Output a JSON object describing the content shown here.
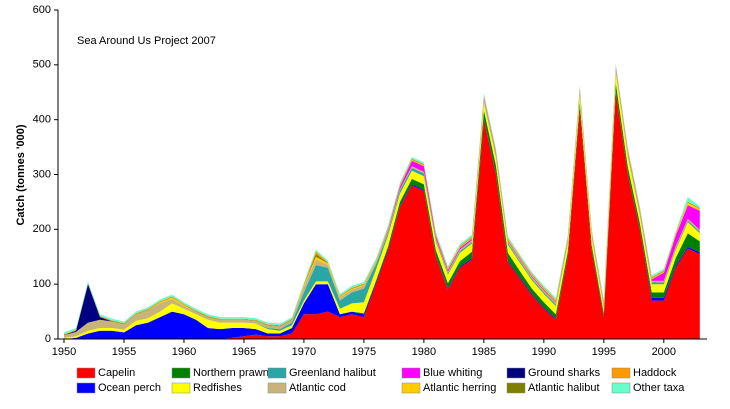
{
  "chart_data": {
    "type": "stacked-area",
    "annotation": "Sea Around Us Project 2007",
    "y_label": "Catch (tonnes '000)",
    "x": [
      1950,
      1951,
      1952,
      1953,
      1954,
      1955,
      1956,
      1957,
      1958,
      1959,
      1960,
      1961,
      1962,
      1963,
      1964,
      1965,
      1966,
      1967,
      1968,
      1969,
      1970,
      1971,
      1972,
      1973,
      1974,
      1975,
      1976,
      1977,
      1978,
      1979,
      1980,
      1981,
      1982,
      1983,
      1984,
      1985,
      1986,
      1987,
      1988,
      1989,
      1990,
      1991,
      1992,
      1993,
      1994,
      1995,
      1996,
      1997,
      1998,
      1999,
      2000,
      2001,
      2002,
      2003
    ],
    "xlim": [
      1949.5,
      2003.6
    ],
    "xticks": [
      1950,
      1955,
      1960,
      1965,
      1970,
      1975,
      1980,
      1985,
      1990,
      1995,
      2000
    ],
    "ylim": [
      0,
      600
    ],
    "yticks": [
      0,
      100,
      200,
      300,
      400,
      500,
      600
    ],
    "series": [
      {
        "name": "Capelin",
        "color": "#ff0000",
        "values": [
          0,
          0,
          0,
          0,
          0,
          0,
          0,
          0,
          0,
          0,
          0,
          0,
          0,
          0,
          2,
          5,
          8,
          5,
          5,
          10,
          45,
          45,
          50,
          40,
          45,
          40,
          100,
          160,
          240,
          280,
          270,
          150,
          90,
          130,
          145,
          400,
          300,
          140,
          110,
          80,
          55,
          35,
          150,
          420,
          160,
          40,
          450,
          300,
          200,
          70,
          70,
          130,
          165,
          155
        ]
      },
      {
        "name": "Ocean perch",
        "color": "#0000ff",
        "values": [
          0,
          2,
          10,
          15,
          15,
          12,
          25,
          30,
          40,
          50,
          45,
          35,
          20,
          18,
          18,
          15,
          10,
          5,
          5,
          10,
          20,
          55,
          50,
          5,
          5,
          5,
          3,
          3,
          2,
          2,
          2,
          2,
          2,
          2,
          2,
          2,
          2,
          2,
          2,
          2,
          2,
          2,
          2,
          2,
          2,
          2,
          2,
          2,
          2,
          5,
          5,
          3,
          3,
          3
        ]
      },
      {
        "name": "Northern prawn",
        "color": "#008000",
        "values": [
          0,
          0,
          0,
          0,
          0,
          0,
          0,
          0,
          0,
          0,
          0,
          0,
          0,
          0,
          0,
          0,
          0,
          0,
          0,
          0,
          0,
          0,
          0,
          0,
          0,
          2,
          3,
          5,
          8,
          10,
          10,
          10,
          10,
          10,
          12,
          15,
          15,
          15,
          12,
          10,
          10,
          8,
          8,
          10,
          8,
          5,
          15,
          12,
          10,
          10,
          10,
          15,
          25,
          20
        ]
      },
      {
        "name": "Redfishes",
        "color": "#ffff00",
        "values": [
          2,
          3,
          5,
          5,
          5,
          5,
          8,
          8,
          10,
          15,
          10,
          10,
          15,
          12,
          10,
          10,
          10,
          8,
          5,
          5,
          5,
          5,
          5,
          10,
          15,
          20,
          20,
          20,
          15,
          15,
          15,
          15,
          15,
          15,
          15,
          15,
          15,
          15,
          15,
          15,
          15,
          15,
          15,
          15,
          15,
          10,
          20,
          20,
          15,
          15,
          15,
          15,
          20,
          15
        ]
      },
      {
        "name": "Greenland halibut",
        "color": "#2aa6a6",
        "values": [
          0,
          0,
          0,
          0,
          0,
          0,
          0,
          0,
          0,
          0,
          0,
          0,
          0,
          0,
          0,
          0,
          0,
          2,
          3,
          5,
          15,
          30,
          25,
          15,
          20,
          25,
          10,
          5,
          5,
          5,
          5,
          3,
          3,
          3,
          3,
          3,
          3,
          3,
          3,
          3,
          3,
          3,
          3,
          3,
          3,
          3,
          3,
          3,
          3,
          3,
          3,
          3,
          3,
          3
        ]
      },
      {
        "name": "Atlantic cod",
        "color": "#c8b47a",
        "values": [
          5,
          8,
          15,
          15,
          12,
          10,
          12,
          15,
          15,
          8,
          5,
          5,
          5,
          5,
          5,
          5,
          5,
          5,
          5,
          5,
          10,
          10,
          5,
          5,
          5,
          5,
          3,
          3,
          3,
          3,
          3,
          3,
          3,
          3,
          3,
          3,
          3,
          3,
          3,
          3,
          3,
          3,
          3,
          3,
          3,
          3,
          3,
          3,
          3,
          3,
          3,
          3,
          3,
          3
        ]
      },
      {
        "name": "Blue whiting",
        "color": "#ff00ff",
        "values": [
          0,
          0,
          0,
          0,
          0,
          0,
          0,
          0,
          0,
          0,
          0,
          0,
          0,
          0,
          0,
          0,
          0,
          0,
          0,
          0,
          0,
          0,
          0,
          0,
          0,
          0,
          0,
          3,
          5,
          10,
          10,
          5,
          3,
          3,
          3,
          3,
          3,
          2,
          2,
          2,
          2,
          2,
          2,
          3,
          2,
          2,
          3,
          3,
          3,
          3,
          15,
          20,
          25,
          35
        ]
      },
      {
        "name": "Atlantic herring",
        "color": "#ffcc00",
        "values": [
          0,
          0,
          0,
          0,
          0,
          0,
          0,
          0,
          2,
          3,
          2,
          0,
          0,
          0,
          0,
          0,
          0,
          0,
          0,
          0,
          3,
          5,
          3,
          2,
          2,
          2,
          2,
          2,
          2,
          2,
          2,
          2,
          2,
          2,
          2,
          2,
          2,
          2,
          2,
          2,
          2,
          2,
          2,
          2,
          2,
          2,
          2,
          2,
          2,
          2,
          2,
          3,
          5,
          3
        ]
      },
      {
        "name": "Ground sharks",
        "color": "#000080",
        "values": [
          0,
          2,
          70,
          5,
          0,
          0,
          0,
          0,
          0,
          0,
          0,
          0,
          0,
          0,
          0,
          0,
          0,
          0,
          0,
          0,
          0,
          0,
          0,
          0,
          0,
          0,
          0,
          0,
          0,
          0,
          0,
          0,
          0,
          0,
          0,
          0,
          0,
          0,
          0,
          0,
          0,
          0,
          0,
          0,
          0,
          0,
          0,
          0,
          0,
          0,
          0,
          0,
          0,
          0
        ]
      },
      {
        "name": "Atlantic halibut",
        "color": "#808000",
        "values": [
          1,
          1,
          1,
          1,
          1,
          1,
          1,
          1,
          1,
          1,
          1,
          1,
          1,
          1,
          1,
          1,
          1,
          1,
          1,
          1,
          1,
          5,
          1,
          1,
          1,
          1,
          1,
          1,
          1,
          1,
          1,
          1,
          1,
          1,
          1,
          1,
          1,
          1,
          1,
          1,
          1,
          1,
          1,
          1,
          1,
          1,
          1,
          1,
          1,
          1,
          1,
          1,
          1,
          1
        ]
      },
      {
        "name": "Haddock",
        "color": "#ff9900",
        "values": [
          1,
          1,
          1,
          1,
          1,
          1,
          1,
          1,
          1,
          1,
          1,
          1,
          1,
          1,
          1,
          1,
          1,
          1,
          1,
          1,
          1,
          5,
          1,
          1,
          1,
          1,
          1,
          1,
          1,
          1,
          1,
          1,
          1,
          1,
          1,
          1,
          1,
          1,
          1,
          1,
          1,
          1,
          1,
          1,
          1,
          1,
          1,
          1,
          1,
          1,
          1,
          1,
          1,
          1
        ]
      },
      {
        "name": "Other taxa",
        "color": "#66ffcc",
        "values": [
          3,
          3,
          3,
          3,
          3,
          3,
          3,
          3,
          3,
          3,
          3,
          3,
          3,
          3,
          3,
          3,
          3,
          3,
          3,
          3,
          3,
          3,
          3,
          3,
          3,
          3,
          3,
          3,
          3,
          3,
          3,
          3,
          3,
          3,
          3,
          3,
          3,
          3,
          3,
          3,
          3,
          3,
          3,
          3,
          3,
          3,
          3,
          3,
          3,
          3,
          3,
          3,
          8,
          3
        ]
      }
    ]
  }
}
